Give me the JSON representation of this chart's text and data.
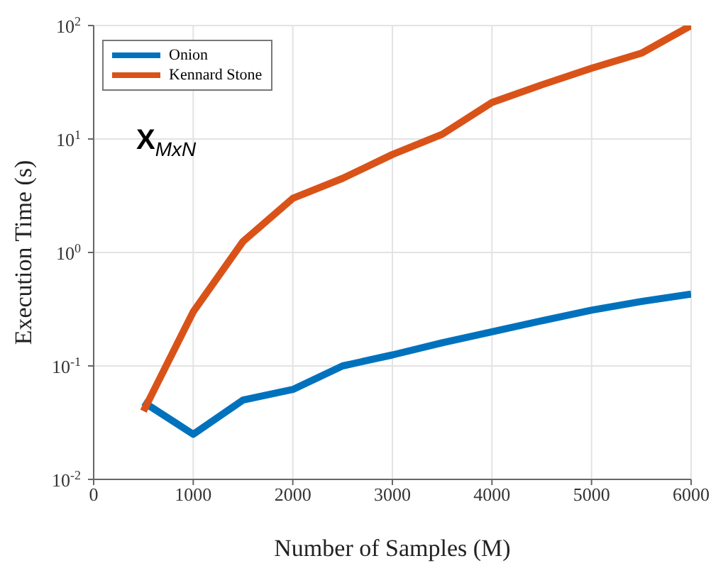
{
  "chart_data": {
    "type": "line",
    "xlabel": "Number of Samples (M)",
    "ylabel": "Execution Time (s)",
    "x": [
      500,
      1000,
      1500,
      2000,
      2500,
      3000,
      3500,
      4000,
      4500,
      5000,
      5500,
      6000
    ],
    "series": [
      {
        "name": "Onion",
        "color": "#0072bd",
        "values": [
          0.048,
          0.025,
          0.05,
          0.062,
          0.1,
          0.125,
          0.16,
          0.2,
          0.25,
          0.31,
          0.37,
          0.43
        ]
      },
      {
        "name": "Kennard Stone",
        "color": "#d95319",
        "values": [
          0.04,
          0.3,
          1.25,
          3.0,
          4.5,
          7.3,
          11,
          21,
          30,
          42,
          57,
          100
        ]
      }
    ],
    "xlim": [
      0,
      6000
    ],
    "xticks": [
      0,
      1000,
      2000,
      3000,
      4000,
      5000,
      6000
    ],
    "ylim": [
      0.01,
      100
    ],
    "yticks": [
      {
        "value": 0.01,
        "label": "10$^{-2}$"
      },
      {
        "value": 0.1,
        "label": "10$^{-1}$"
      },
      {
        "value": 1,
        "label": "10$^{0}$"
      },
      {
        "value": 10,
        "label": "10$^{1}$"
      },
      {
        "value": 100,
        "label": "10$^{2}$"
      }
    ],
    "log": true,
    "grid": true,
    "legend": "top left",
    "marker": "none",
    "line_style": "solid",
    "annotations": [
      "X$_{MxN}$"
    ]
  }
}
